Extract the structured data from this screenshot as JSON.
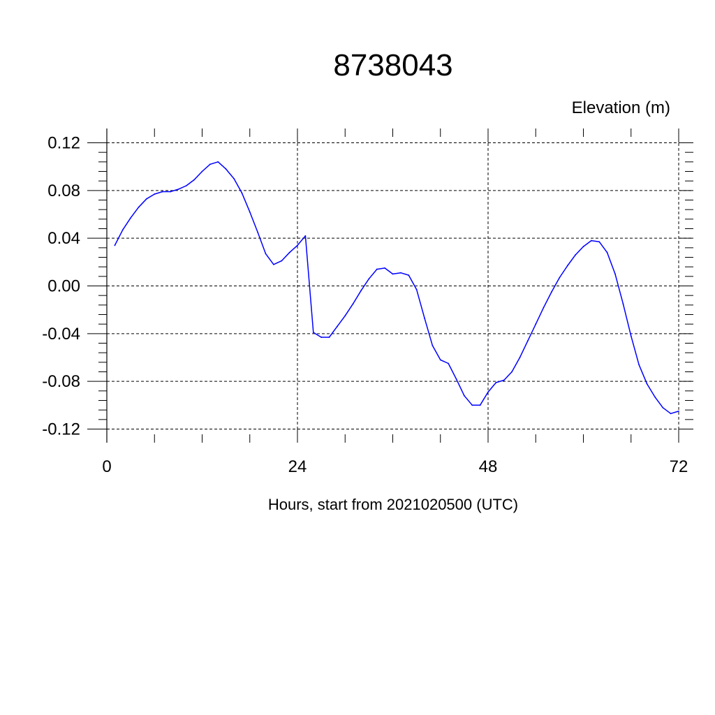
{
  "title": "8738043",
  "ylabel": "Elevation (m)",
  "xlabel": "Hours, start from 2021020500 (UTC)",
  "colors": {
    "line": "#0000ff",
    "axis": "#000000",
    "grid": "#000000"
  },
  "chart_data": {
    "type": "line",
    "title": "8738043",
    "xlabel": "Hours, start from 2021020500 (UTC)",
    "ylabel": "Elevation (m)",
    "xlim": [
      0,
      72
    ],
    "ylim": [
      -0.12,
      0.12
    ],
    "x_ticks": [
      0,
      24,
      48,
      72
    ],
    "x_tick_labels": [
      "0",
      "24",
      "48",
      "72"
    ],
    "y_ticks": [
      -0.12,
      -0.08,
      -0.04,
      0.0,
      0.04,
      0.08,
      0.12
    ],
    "y_tick_labels": [
      "-0.12",
      "-0.08",
      "-0.04",
      "0.00",
      "0.04",
      "0.08",
      "0.12"
    ],
    "grid": true,
    "grid_style": "dashed",
    "series": [
      {
        "color": "#0000ff",
        "x": [
          1,
          2,
          3,
          4,
          5,
          6,
          7,
          8,
          9,
          10,
          11,
          12,
          13,
          14,
          15,
          16,
          17,
          18,
          19,
          20,
          21,
          22,
          23,
          24,
          25,
          26,
          27,
          28,
          29,
          30,
          31,
          32,
          33,
          34,
          35,
          36,
          37,
          38,
          39,
          40,
          41,
          42,
          43,
          44,
          45,
          46,
          47,
          48,
          49,
          50,
          51,
          52,
          53,
          54,
          55,
          56,
          57,
          58,
          59,
          60,
          61,
          62,
          63,
          64,
          65,
          66,
          67,
          68,
          69,
          70,
          71,
          72
        ],
        "values": [
          0.034,
          0.047,
          0.057,
          0.066,
          0.073,
          0.077,
          0.079,
          0.079,
          0.081,
          0.084,
          0.089,
          0.096,
          0.102,
          0.104,
          0.098,
          0.09,
          0.078,
          0.062,
          0.045,
          0.027,
          0.018,
          0.021,
          0.028,
          0.034,
          0.042,
          -0.039,
          -0.043,
          -0.043,
          -0.034,
          -0.025,
          -0.015,
          -0.004,
          0.006,
          0.014,
          0.015,
          0.01,
          0.011,
          0.009,
          -0.003,
          -0.027,
          -0.05,
          -0.062,
          -0.065,
          -0.078,
          -0.092,
          -0.1,
          -0.1,
          -0.089,
          -0.081,
          -0.079,
          -0.072,
          -0.06,
          -0.046,
          -0.032,
          -0.018,
          -0.005,
          0.007,
          0.017,
          0.026,
          0.033,
          0.038,
          0.037,
          0.028,
          0.01,
          -0.015,
          -0.042,
          -0.066,
          -0.082,
          -0.093,
          -0.102,
          -0.107,
          -0.105
        ]
      }
    ]
  }
}
